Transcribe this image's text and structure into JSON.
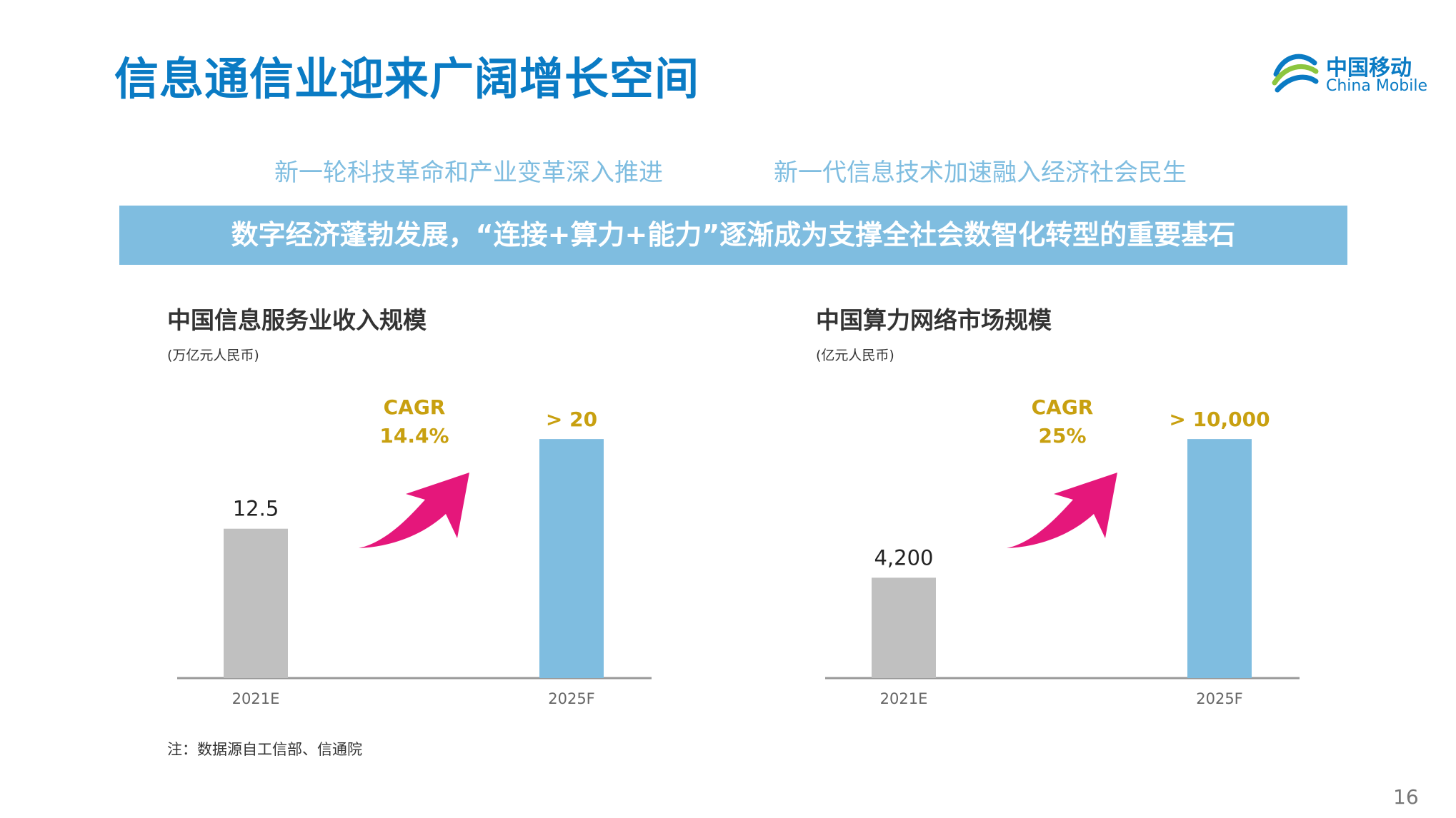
{
  "title": "信息通信业迎来广阔增长空间",
  "logo": {
    "cn": "中国移动",
    "en": "China Mobile"
  },
  "subtitles": [
    "新一轮科技革命和产业变革深入推进",
    "新一代信息技术加速融入经济社会民生"
  ],
  "banner": "数字经济蓬勃发展，“连接+算力+能力”逐渐成为支撑全社会数智化转型的重要基石",
  "note": "注：数据源自工信部、信通院",
  "page_number": "16",
  "colors": {
    "title": "#0a7bc4",
    "banner": "#7fbde0",
    "bar_2021": "#c0c0c0",
    "bar_2025": "#7fbde0",
    "arrow": "#e5177b",
    "cagr_text": "#c8a010"
  },
  "chart_data": [
    {
      "type": "bar",
      "title": "中国信息服务业收入规模",
      "unit": "(万亿元人民币)",
      "categories": [
        "2021E",
        "2025F"
      ],
      "values": [
        12.5,
        20
      ],
      "data_labels": [
        "12.5",
        "> 20"
      ],
      "cagr_label": "CAGR",
      "cagr_value": "14.4%",
      "ylim": [
        0,
        21.5
      ],
      "grid": false
    },
    {
      "type": "bar",
      "title": "中国算力网络市场规模",
      "unit": "(亿元人民币)",
      "categories": [
        "2021E",
        "2025F"
      ],
      "values": [
        4200,
        10000
      ],
      "data_labels": [
        "4,200",
        "> 10,000"
      ],
      "cagr_label": "CAGR",
      "cagr_value": "25%",
      "ylim": [
        0,
        10750
      ],
      "grid": false
    }
  ]
}
